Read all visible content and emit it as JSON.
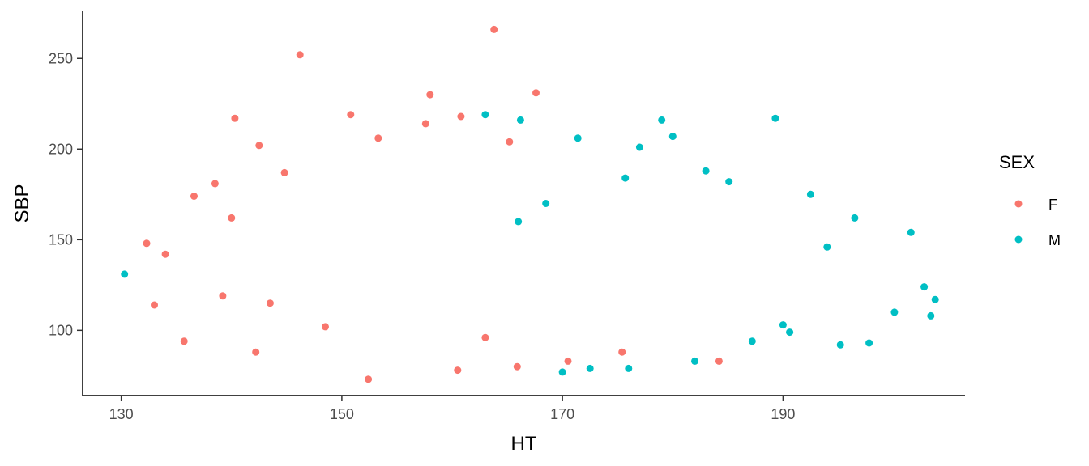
{
  "chart_data": {
    "type": "scatter",
    "title": "",
    "xlabel": "HT",
    "ylabel": "SBP",
    "xlim": [
      126.5,
      206.5
    ],
    "ylim": [
      64,
      276
    ],
    "xticks": [
      130,
      150,
      170,
      190
    ],
    "yticks": [
      100,
      150,
      200,
      250
    ],
    "grid": false,
    "legend": {
      "title": "SEX",
      "position": "right"
    },
    "series": [
      {
        "name": "F",
        "color": "#F8766D",
        "points": [
          [
            163.8,
            266
          ],
          [
            146.2,
            252
          ],
          [
            167.6,
            231
          ],
          [
            158.0,
            230
          ],
          [
            140.3,
            217
          ],
          [
            132.3,
            148
          ],
          [
            133.0,
            114
          ],
          [
            135.7,
            94
          ],
          [
            136.6,
            174
          ],
          [
            138.5,
            181
          ],
          [
            134.0,
            142
          ],
          [
            140.0,
            162
          ],
          [
            142.5,
            202
          ],
          [
            144.8,
            187
          ],
          [
            150.8,
            219
          ],
          [
            153.3,
            206
          ],
          [
            157.6,
            214
          ],
          [
            160.8,
            218
          ],
          [
            165.2,
            204
          ],
          [
            163.0,
            96
          ],
          [
            152.4,
            73
          ],
          [
            160.5,
            78
          ],
          [
            165.9,
            80
          ],
          [
            170.5,
            83
          ],
          [
            175.4,
            88
          ],
          [
            184.2,
            83
          ],
          [
            148.5,
            102
          ],
          [
            143.5,
            115
          ],
          [
            139.2,
            119
          ],
          [
            142.2,
            88
          ]
        ]
      },
      {
        "name": "M",
        "color": "#00BFC4",
        "points": [
          [
            130.3,
            131
          ],
          [
            189.3,
            217
          ],
          [
            179.0,
            216
          ],
          [
            170.0,
            77
          ],
          [
            172.5,
            79
          ],
          [
            176.0,
            79
          ],
          [
            182.0,
            83
          ],
          [
            187.2,
            94
          ],
          [
            190.6,
            99
          ],
          [
            195.2,
            92
          ],
          [
            197.8,
            93
          ],
          [
            200.1,
            110
          ],
          [
            201.6,
            154
          ],
          [
            202.8,
            124
          ],
          [
            203.8,
            117
          ],
          [
            203.4,
            108
          ],
          [
            196.5,
            162
          ],
          [
            192.5,
            175
          ],
          [
            183.0,
            188
          ],
          [
            177.0,
            201
          ],
          [
            171.4,
            206
          ],
          [
            166.2,
            216
          ],
          [
            163.0,
            219
          ],
          [
            185.1,
            182
          ],
          [
            175.7,
            184
          ],
          [
            168.5,
            170
          ],
          [
            166.0,
            160
          ],
          [
            180.0,
            207
          ],
          [
            194.0,
            146
          ],
          [
            190.0,
            103
          ]
        ]
      }
    ]
  }
}
